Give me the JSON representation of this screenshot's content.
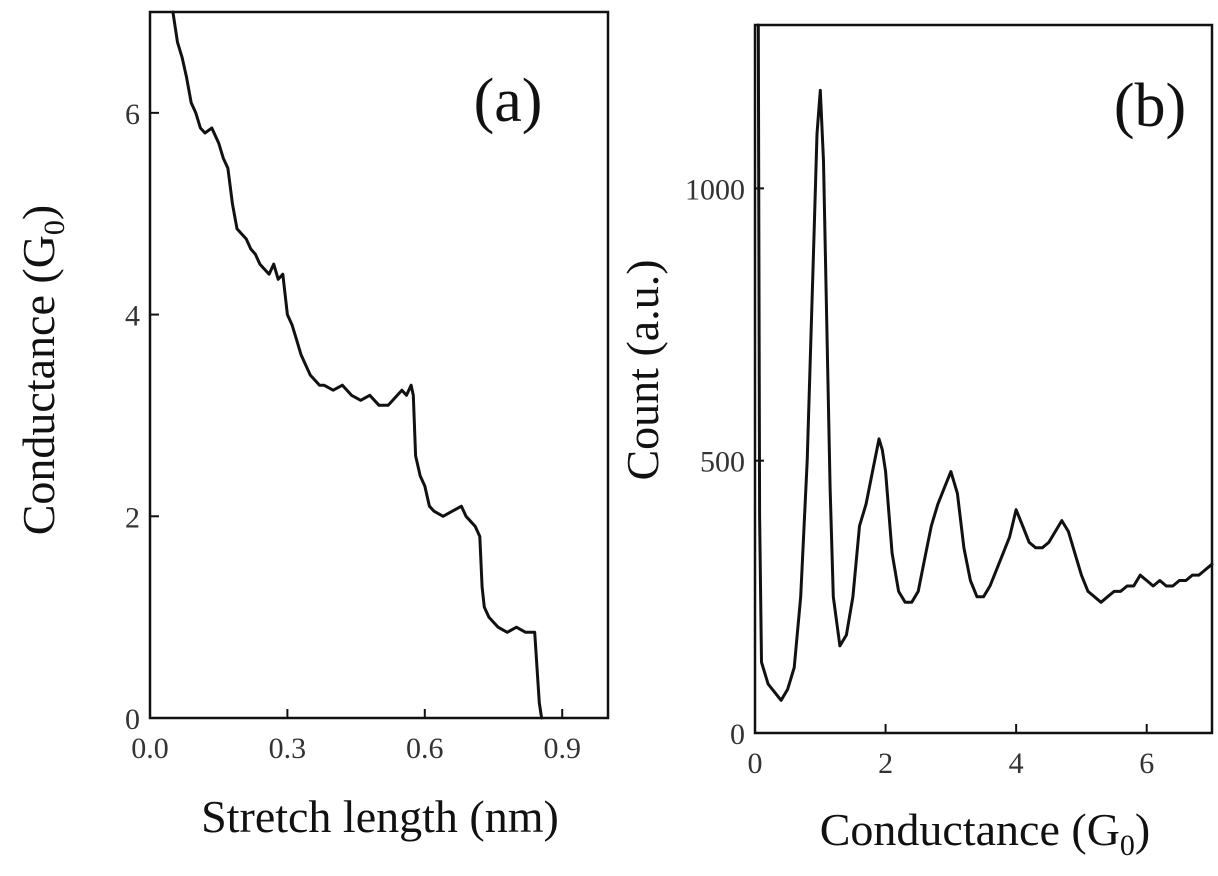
{
  "chart_data": [
    {
      "type": "line",
      "panel_label": "(a)",
      "xlabel": "Stretch length (nm)",
      "ylabel": "Conductance (G",
      "ylabel_sub": "0",
      "ylabel_tail": ")",
      "xlim": [
        0.0,
        1.0
      ],
      "ylim": [
        0,
        7
      ],
      "xticks": [
        "0.0",
        "0.3",
        "0.6",
        "0.9"
      ],
      "xtick_values": [
        0.0,
        0.3,
        0.6,
        0.9
      ],
      "yticks": [
        "0",
        "2",
        "4",
        "6"
      ],
      "ytick_values": [
        0,
        2,
        4,
        6
      ],
      "grid": false,
      "series": [
        {
          "x": [
            0.05,
            0.06,
            0.07,
            0.08,
            0.09,
            0.1,
            0.11,
            0.12,
            0.135,
            0.15,
            0.16,
            0.17,
            0.18,
            0.19,
            0.2,
            0.21,
            0.22,
            0.23,
            0.24,
            0.25,
            0.26,
            0.27,
            0.28,
            0.29,
            0.3,
            0.31,
            0.32,
            0.33,
            0.34,
            0.35,
            0.36,
            0.37,
            0.38,
            0.4,
            0.42,
            0.44,
            0.46,
            0.48,
            0.5,
            0.52,
            0.54,
            0.55,
            0.56,
            0.57,
            0.575,
            0.58,
            0.59,
            0.6,
            0.61,
            0.62,
            0.64,
            0.66,
            0.68,
            0.69,
            0.7,
            0.71,
            0.715,
            0.72,
            0.725,
            0.73,
            0.74,
            0.75,
            0.76,
            0.78,
            0.8,
            0.82,
            0.84,
            0.845,
            0.85,
            0.855
          ],
          "y": [
            7.0,
            6.7,
            6.55,
            6.35,
            6.1,
            6.0,
            5.85,
            5.8,
            5.85,
            5.7,
            5.55,
            5.45,
            5.1,
            4.85,
            4.8,
            4.75,
            4.65,
            4.6,
            4.5,
            4.45,
            4.4,
            4.5,
            4.35,
            4.4,
            4.0,
            3.9,
            3.75,
            3.6,
            3.5,
            3.4,
            3.35,
            3.3,
            3.3,
            3.25,
            3.3,
            3.2,
            3.15,
            3.2,
            3.1,
            3.1,
            3.2,
            3.25,
            3.2,
            3.3,
            3.2,
            2.6,
            2.4,
            2.3,
            2.1,
            2.05,
            2.0,
            2.05,
            2.1,
            2.0,
            1.95,
            1.9,
            1.85,
            1.8,
            1.3,
            1.1,
            1.0,
            0.95,
            0.9,
            0.85,
            0.9,
            0.85,
            0.85,
            0.5,
            0.15,
            0.0
          ]
        }
      ]
    },
    {
      "type": "line",
      "panel_label": "(b)",
      "xlabel": "Conductance (G",
      "xlabel_sub": "0",
      "xlabel_tail": ")",
      "ylabel": "Count (a.u.)",
      "xlim": [
        0,
        7
      ],
      "ylim": [
        0,
        1300
      ],
      "xticks": [
        "0",
        "2",
        "4",
        "6"
      ],
      "xtick_values": [
        0,
        2,
        4,
        6
      ],
      "yticks": [
        "0",
        "500",
        "1000"
      ],
      "ytick_values": [
        0,
        500,
        1000
      ],
      "grid": false,
      "series": [
        {
          "x": [
            0.05,
            0.07,
            0.1,
            0.15,
            0.2,
            0.3,
            0.4,
            0.5,
            0.6,
            0.7,
            0.8,
            0.85,
            0.9,
            0.95,
            1.0,
            1.05,
            1.1,
            1.15,
            1.2,
            1.3,
            1.4,
            1.5,
            1.6,
            1.7,
            1.8,
            1.9,
            1.95,
            2.0,
            2.1,
            2.2,
            2.3,
            2.4,
            2.5,
            2.6,
            2.7,
            2.8,
            2.9,
            3.0,
            3.1,
            3.2,
            3.3,
            3.4,
            3.5,
            3.6,
            3.7,
            3.8,
            3.9,
            4.0,
            4.1,
            4.2,
            4.3,
            4.4,
            4.5,
            4.6,
            4.7,
            4.8,
            4.9,
            5.0,
            5.1,
            5.2,
            5.3,
            5.4,
            5.5,
            5.6,
            5.7,
            5.8,
            5.9,
            6.0,
            6.1,
            6.2,
            6.3,
            6.4,
            6.5,
            6.6,
            6.7,
            6.8,
            6.9,
            7.0
          ],
          "y": [
            1300,
            400,
            130,
            110,
            90,
            75,
            60,
            80,
            120,
            250,
            500,
            700,
            900,
            1100,
            1180,
            1050,
            750,
            450,
            250,
            160,
            180,
            250,
            380,
            420,
            480,
            540,
            520,
            480,
            330,
            260,
            240,
            240,
            260,
            320,
            380,
            420,
            450,
            480,
            440,
            340,
            280,
            250,
            250,
            270,
            300,
            330,
            360,
            410,
            380,
            350,
            340,
            340,
            350,
            370,
            390,
            370,
            330,
            290,
            260,
            250,
            240,
            250,
            260,
            260,
            270,
            270,
            290,
            280,
            270,
            280,
            270,
            270,
            280,
            280,
            290,
            290,
            300,
            310
          ]
        }
      ]
    }
  ]
}
